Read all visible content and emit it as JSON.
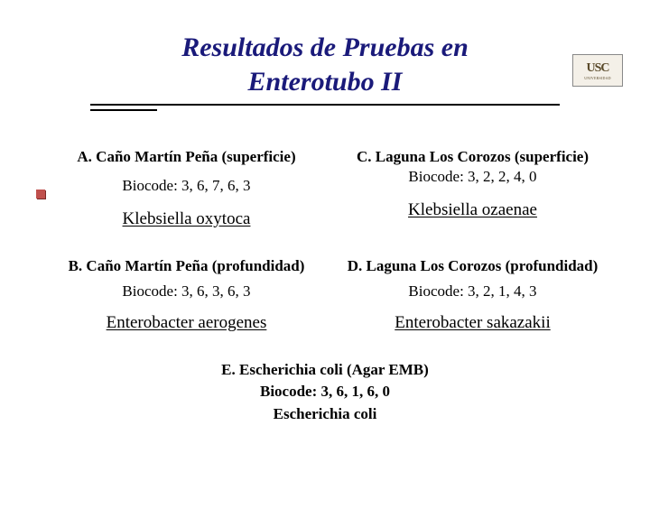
{
  "title_color": "#1a1a7a",
  "title_line1": "Resultados de Pruebas en",
  "title_line2": "Enterotubo II",
  "logo": {
    "main": "USC",
    "sub": "UNIVERSIDAD"
  },
  "bullet_color": "#c0504d",
  "sections": {
    "a": {
      "heading": "A. Caño Martín Peña (superficie)",
      "biocode": "Biocode: 3, 6, 7, 6, 3",
      "result": "Klebsiella oxytoca"
    },
    "b": {
      "heading": "B. Caño Martín Peña (profundidad)",
      "biocode": "Biocode: 3, 6, 3, 6, 3",
      "result": "Enterobacter aerogenes"
    },
    "c": {
      "heading": "C. Laguna Los Corozos (superficie)",
      "biocode": "Biocode: 3, 2, 2, 4, 0",
      "result": "Klebsiella ozaenae"
    },
    "d": {
      "heading": "D.  Laguna Los Corozos (profundidad)",
      "biocode": "Biocode: 3, 2, 1, 4, 3",
      "result": "Enterobacter sakazakii"
    },
    "e": {
      "heading": "E. Escherichia coli (Agar EMB)",
      "biocode": "Biocode: 3, 6, 1, 6, 0",
      "result": "Escherichia coli"
    }
  }
}
